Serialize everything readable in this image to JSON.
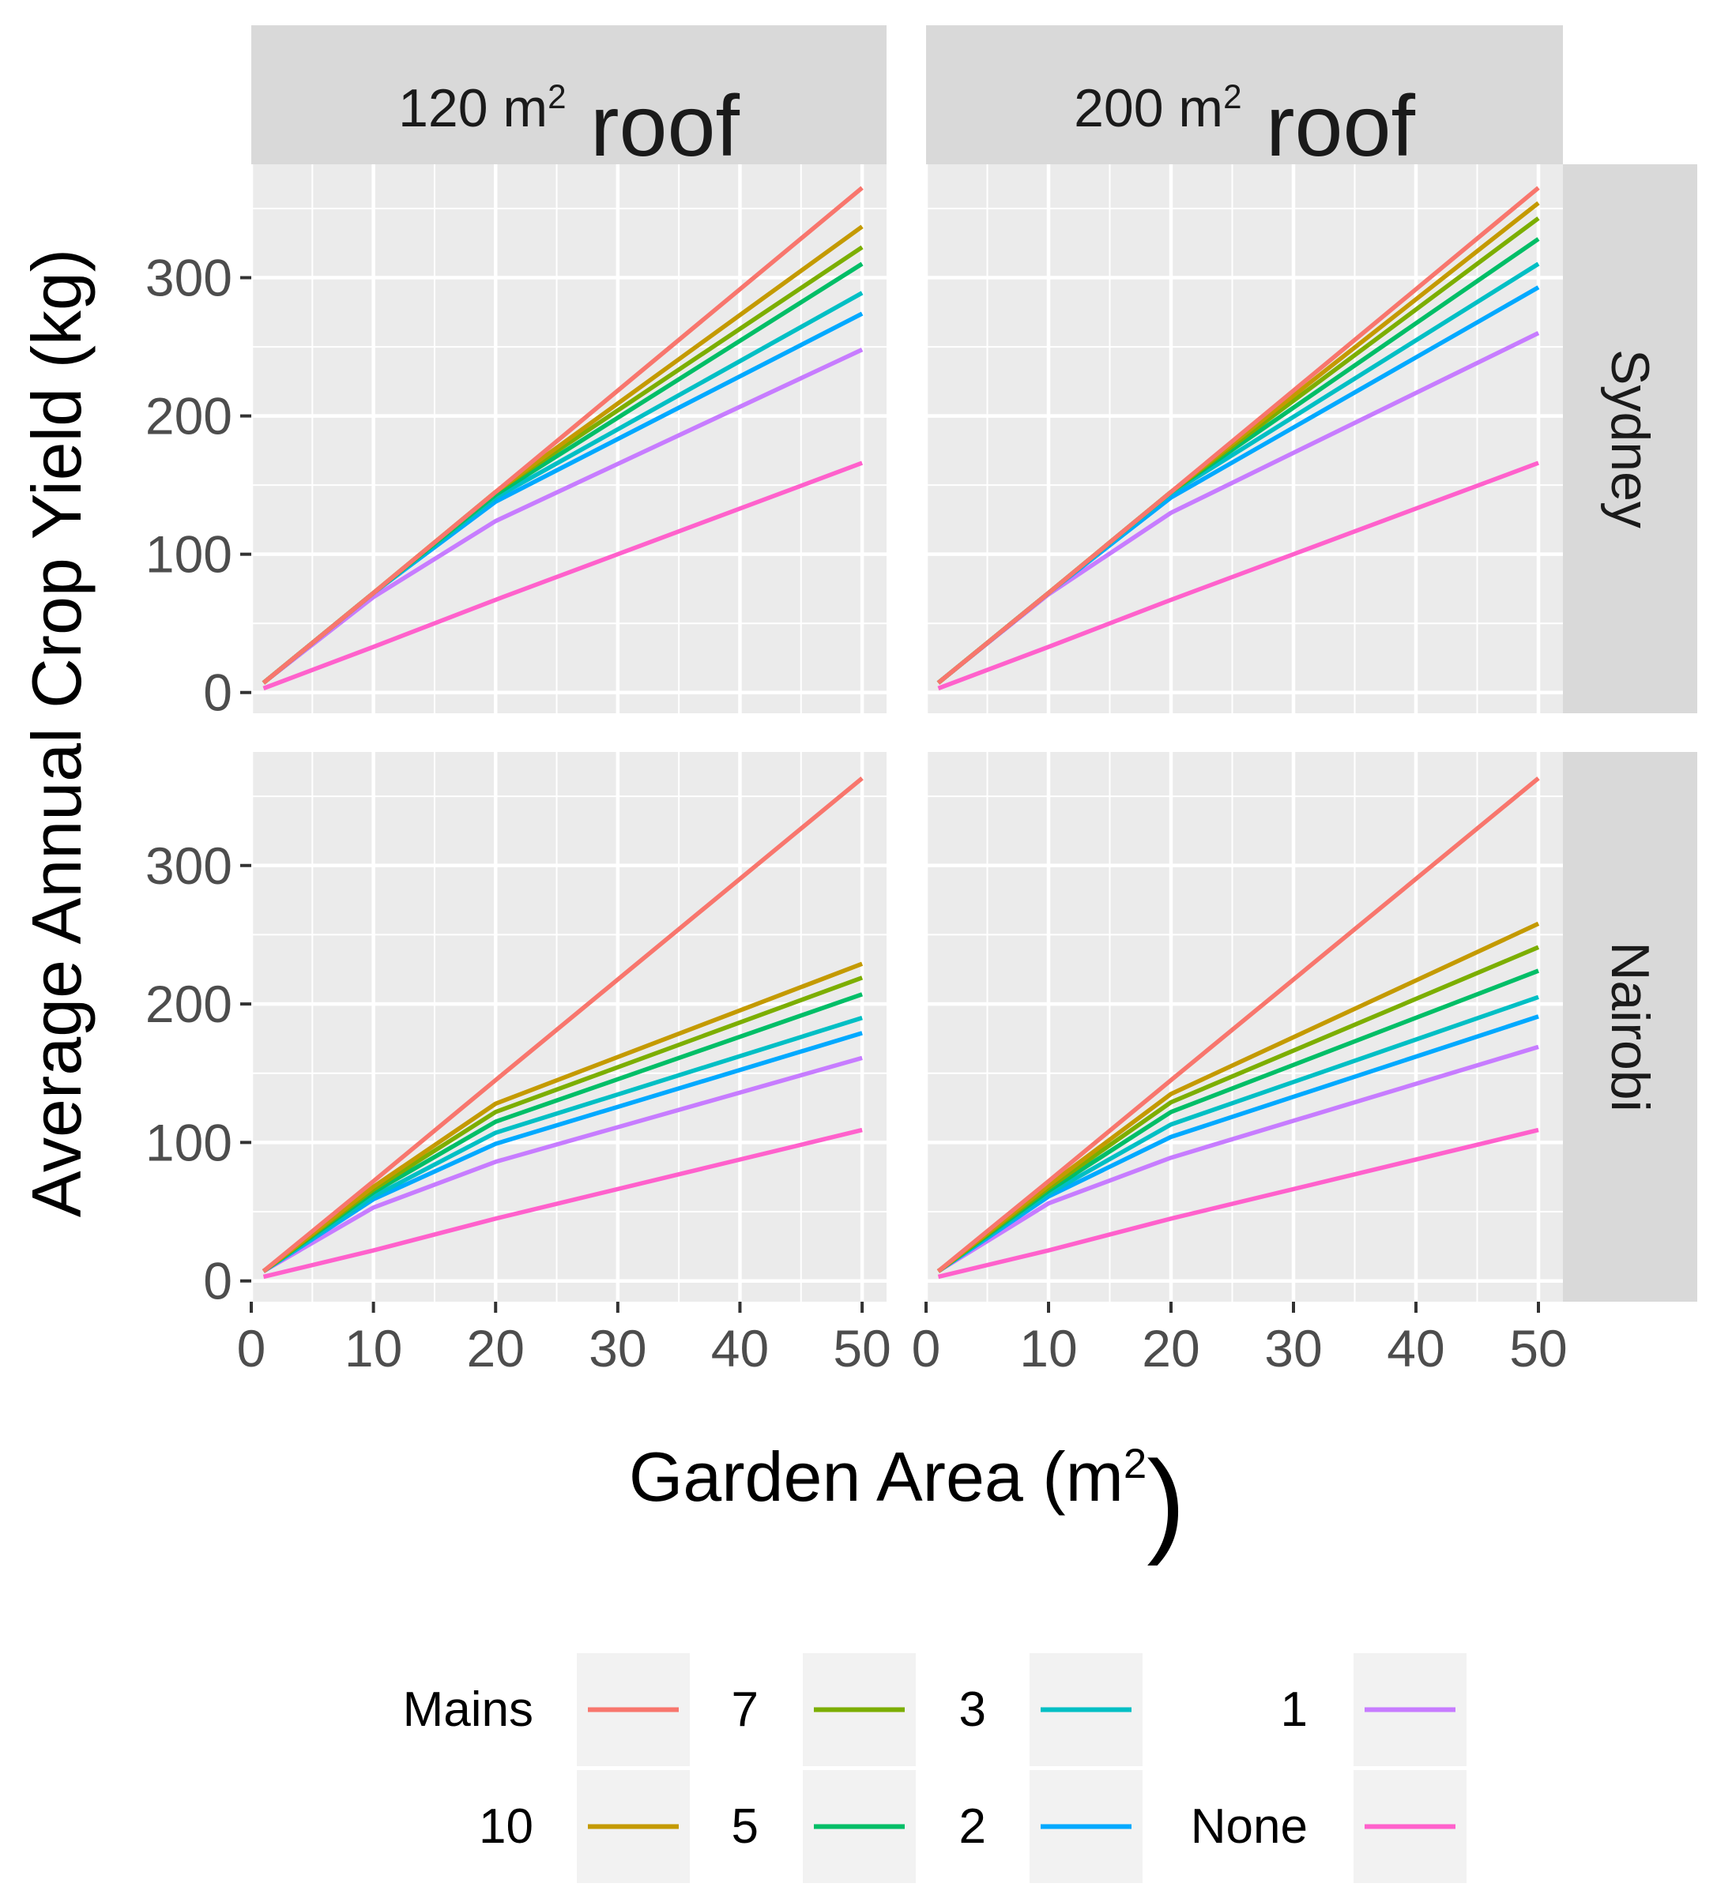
{
  "chart_data": {
    "type": "line",
    "xlabel": "Garden Area (m",
    "xlabel_sup": "2",
    "xlabel_end": ")",
    "ylabel": "Average Annual Crop Yield (kg)",
    "xlim": [
      0,
      52
    ],
    "ylim": [
      -15,
      382
    ],
    "xticks": [
      "0",
      "10",
      "20",
      "30",
      "40",
      "50"
    ],
    "yticks": [
      "0",
      "100",
      "200",
      "300"
    ],
    "columns": [
      {
        "label": "120 m",
        "sup": "2",
        "suffix": " roof"
      },
      {
        "label": "200 m",
        "sup": "2",
        "suffix": " roof"
      }
    ],
    "rows": [
      "Sydney",
      "Nairobi"
    ],
    "series_colors": {
      "Mains": "#F8766D",
      "10": "#C49A00",
      "7": "#7CAE00",
      "5": "#00BE67",
      "3": "#00BFC4",
      "2": "#00A9FF",
      "1": "#C77CFF",
      "None": "#FF61CC"
    },
    "x": [
      1,
      10,
      20,
      50
    ],
    "panels": [
      {
        "row": "Sydney",
        "column": "120 m2 roof",
        "series": [
          {
            "name": "Mains",
            "values": [
              7,
              72,
              145,
              365
            ]
          },
          {
            "name": "10",
            "values": [
              7,
              72,
              145,
              337
            ]
          },
          {
            "name": "7",
            "values": [
              7,
              72,
              145,
              322
            ]
          },
          {
            "name": "5",
            "values": [
              7,
              72,
              143,
              310
            ]
          },
          {
            "name": "3",
            "values": [
              7,
              72,
              141,
              289
            ]
          },
          {
            "name": "2",
            "values": [
              7,
              72,
              138,
              274
            ]
          },
          {
            "name": "1",
            "values": [
              7,
              69,
              124,
              248
            ]
          },
          {
            "name": "None",
            "values": [
              3,
              33,
              67,
              166
            ]
          }
        ]
      },
      {
        "row": "Sydney",
        "column": "200 m2 roof",
        "series": [
          {
            "name": "Mains",
            "values": [
              7,
              72,
              145,
              365
            ]
          },
          {
            "name": "10",
            "values": [
              7,
              72,
              145,
              354
            ]
          },
          {
            "name": "7",
            "values": [
              7,
              72,
              145,
              343
            ]
          },
          {
            "name": "5",
            "values": [
              7,
              72,
              145,
              328
            ]
          },
          {
            "name": "3",
            "values": [
              7,
              72,
              144,
              310
            ]
          },
          {
            "name": "2",
            "values": [
              7,
              72,
              141,
              293
            ]
          },
          {
            "name": "1",
            "values": [
              7,
              71,
              130,
              260
            ]
          },
          {
            "name": "None",
            "values": [
              3,
              33,
              67,
              166
            ]
          }
        ]
      },
      {
        "row": "Nairobi",
        "column": "120 m2 roof",
        "series": [
          {
            "name": "Mains",
            "values": [
              7,
              72,
              145,
              363
            ]
          },
          {
            "name": "10",
            "values": [
              7,
              68,
              128,
              229
            ]
          },
          {
            "name": "7",
            "values": [
              7,
              66,
              122,
              219
            ]
          },
          {
            "name": "5",
            "values": [
              7,
              64,
              115,
              207
            ]
          },
          {
            "name": "3",
            "values": [
              7,
              61,
              107,
              190
            ]
          },
          {
            "name": "2",
            "values": [
              7,
              59,
              99,
              179
            ]
          },
          {
            "name": "1",
            "values": [
              7,
              53,
              86,
              161
            ]
          },
          {
            "name": "None",
            "values": [
              3,
              22,
              45,
              109
            ]
          }
        ]
      },
      {
        "row": "Nairobi",
        "column": "200 m2 roof",
        "series": [
          {
            "name": "Mains",
            "values": [
              7,
              72,
              145,
              363
            ]
          },
          {
            "name": "10",
            "values": [
              7,
              69,
              135,
              258
            ]
          },
          {
            "name": "7",
            "values": [
              7,
              67,
              129,
              241
            ]
          },
          {
            "name": "5",
            "values": [
              7,
              65,
              122,
              224
            ]
          },
          {
            "name": "3",
            "values": [
              7,
              63,
              113,
              205
            ]
          },
          {
            "name": "2",
            "values": [
              7,
              61,
              104,
              191
            ]
          },
          {
            "name": "1",
            "values": [
              7,
              56,
              89,
              169
            ]
          },
          {
            "name": "None",
            "values": [
              3,
              22,
              45,
              109
            ]
          }
        ]
      }
    ],
    "legend": {
      "placement": "bottom",
      "layout": [
        [
          {
            "key": "Mains",
            "label": "Mains"
          },
          {
            "key": "7",
            "label": "7"
          },
          {
            "key": "3",
            "label": "3"
          },
          {
            "key": "1",
            "label": "1"
          }
        ],
        [
          {
            "key": "10",
            "label": "10"
          },
          {
            "key": "5",
            "label": "5"
          },
          {
            "key": "2",
            "label": "2"
          },
          {
            "key": "None",
            "label": "None"
          }
        ]
      ]
    }
  }
}
